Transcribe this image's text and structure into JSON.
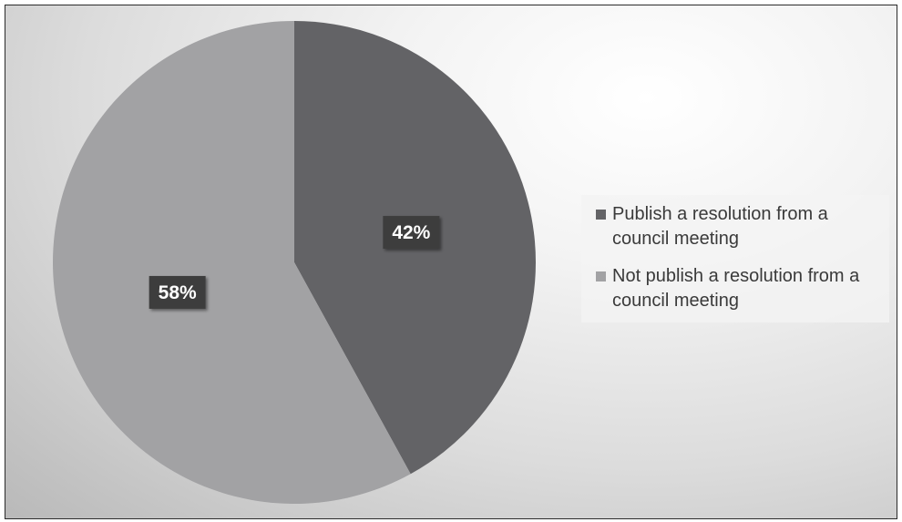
{
  "chart_data": {
    "type": "pie",
    "title": "",
    "slices": [
      {
        "label": "Publish a resolution from a council meeting",
        "value": 42,
        "data_label": "42%",
        "color": "#636366"
      },
      {
        "label": "Not publish a resolution from a council meeting",
        "value": 58,
        "data_label": "58%",
        "color": "#a2a2a4"
      }
    ],
    "legend_position": "right",
    "start_angle": "12 o'clock",
    "direction": "clockwise"
  }
}
